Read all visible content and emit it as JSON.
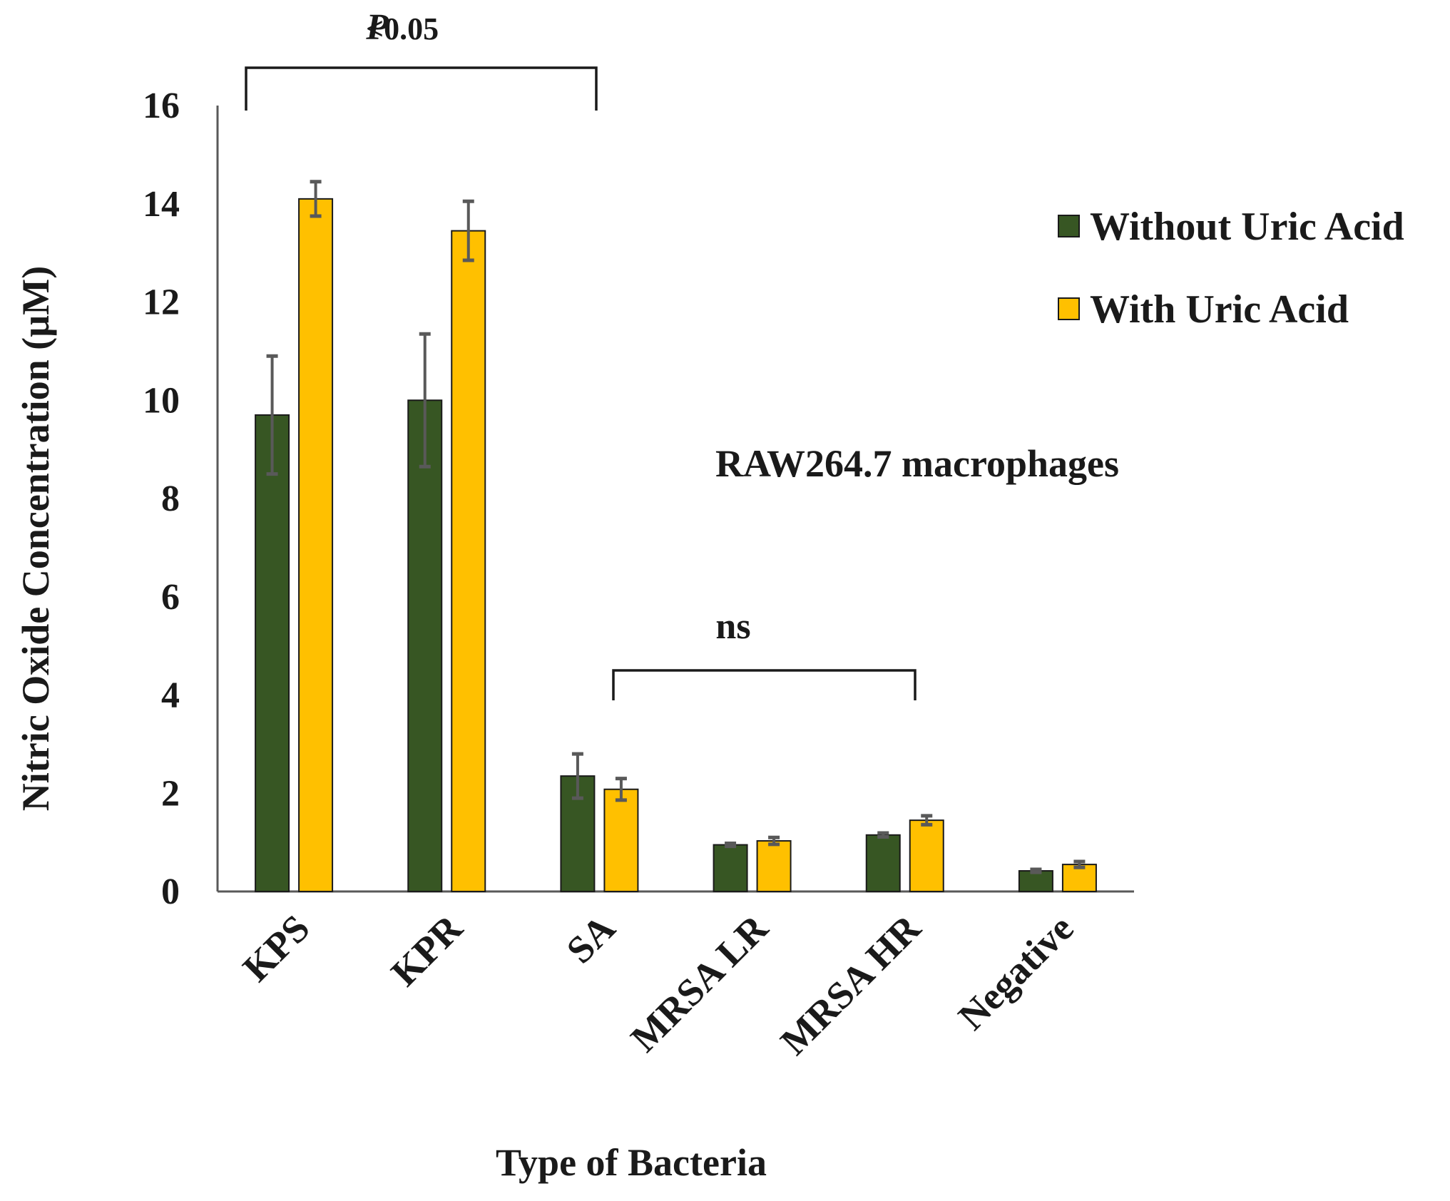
{
  "chart_data": {
    "type": "bar",
    "title": "",
    "xlabel": "Type of Bacteria",
    "ylabel": "Nitric Oxide Concentration (µM)",
    "ylim": [
      0,
      16
    ],
    "yticks": [
      0,
      2,
      4,
      6,
      8,
      10,
      12,
      14,
      16
    ],
    "categories": [
      "KPS",
      "KPR",
      "SA",
      "MRSA LR",
      "MRSA HR",
      "Negative"
    ],
    "series": [
      {
        "name": "Without Uric Acid",
        "color": "#375623",
        "values": [
          9.7,
          10.0,
          2.35,
          0.95,
          1.15,
          0.42
        ],
        "errors": [
          1.2,
          1.35,
          0.45,
          0.03,
          0.04,
          0.03
        ]
      },
      {
        "name": "With Uric Acid",
        "color": "#FFC000",
        "values": [
          14.1,
          13.45,
          2.08,
          1.03,
          1.45,
          0.55
        ],
        "errors": [
          0.35,
          0.6,
          0.22,
          0.07,
          0.09,
          0.06
        ]
      }
    ],
    "legend_position": "right",
    "annotations": {
      "cell_line": "RAW264.7 macrophages",
      "significance_p": "P",
      "significance_value": "<0.05",
      "significance_ns": "ns"
    }
  }
}
